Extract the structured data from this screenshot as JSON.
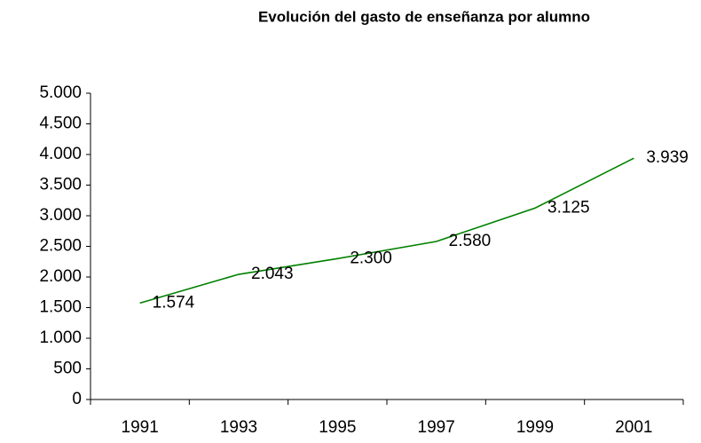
{
  "chart_data": {
    "type": "line",
    "title": "Evolución del gasto de enseñanza por alumno",
    "categories": [
      "1991",
      "1993",
      "1995",
      "1997",
      "1999",
      "2001"
    ],
    "series": [
      {
        "color": "#008000",
        "values": [
          1574,
          2043,
          2300,
          2580,
          3125,
          3939
        ],
        "value_labels": [
          "1.574",
          "2.043",
          "2.300",
          "2.580",
          "3.125",
          "3.939"
        ]
      }
    ],
    "ylim": [
      0,
      5000
    ],
    "yticks": [
      0,
      500,
      {
        "value": 1000,
        "label": "1.000"
      },
      {
        "value": 1500,
        "label": "1.500"
      },
      {
        "value": 2000,
        "label": "2.000"
      },
      {
        "value": 2500,
        "label": "2.500"
      },
      {
        "value": 3000,
        "label": "3.000"
      },
      {
        "value": 3500,
        "label": "3.500"
      },
      {
        "value": 4000,
        "label": "4.000"
      },
      {
        "value": 4500,
        "label": "4.500"
      },
      {
        "value": 5000,
        "label": "5.000"
      }
    ],
    "grid": false
  }
}
